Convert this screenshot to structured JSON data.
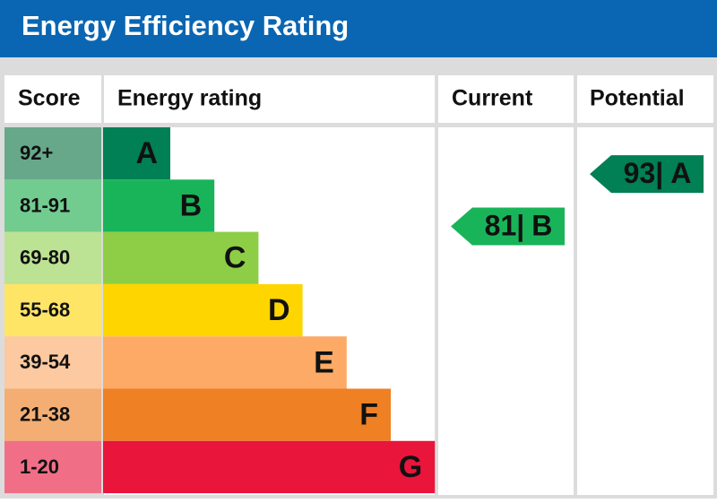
{
  "header": {
    "title": "Energy Efficiency Rating"
  },
  "table": {
    "headers": [
      "Score",
      "Energy rating",
      "Current",
      "Potential"
    ],
    "bands": [
      {
        "range": "92+",
        "letter": "A",
        "color": "#008054",
        "score_color": "#67a88b"
      },
      {
        "range": "81-91",
        "letter": "B",
        "color": "#19b459",
        "score_color": "#72cb8f"
      },
      {
        "range": "69-80",
        "letter": "C",
        "color": "#8dce46",
        "score_color": "#bce293"
      },
      {
        "range": "55-68",
        "letter": "D",
        "color": "#ffd500",
        "score_color": "#ffe566"
      },
      {
        "range": "39-54",
        "letter": "E",
        "color": "#fcaa65",
        "score_color": "#fdc9a0"
      },
      {
        "range": "21-38",
        "letter": "F",
        "color": "#ef8023",
        "score_color": "#f4ae73"
      },
      {
        "range": "1-20",
        "letter": "G",
        "color": "#e9153b",
        "score_color": "#f06f87"
      }
    ],
    "current": {
      "score": "81|",
      "letter": "B"
    },
    "potential": {
      "score": "93|",
      "letter": "A"
    }
  }
}
